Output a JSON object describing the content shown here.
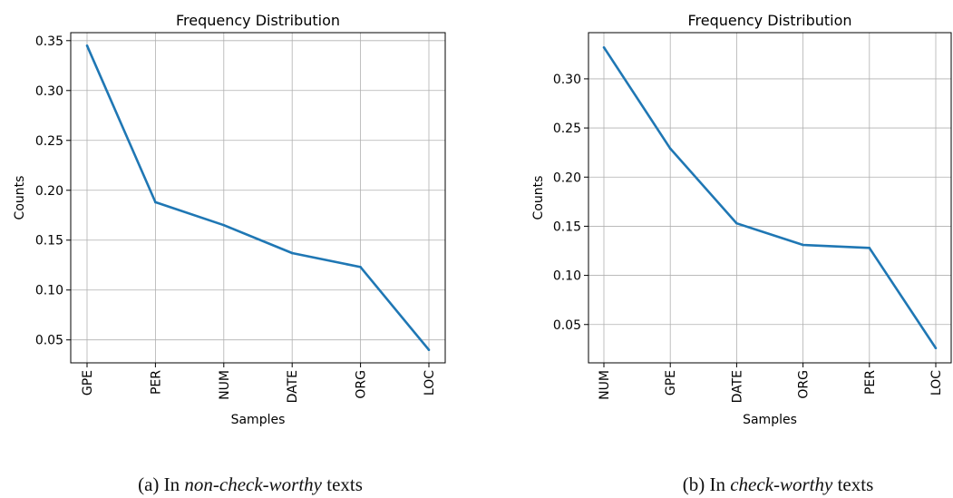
{
  "chart_data": [
    {
      "type": "line",
      "title": "Frequency Distribution",
      "xlabel": "Samples",
      "ylabel": "Counts",
      "categories": [
        "GPE",
        "PER",
        "NUM",
        "DATE",
        "ORG",
        "LOC"
      ],
      "values": [
        0.345,
        0.188,
        0.165,
        0.137,
        0.123,
        0.04
      ],
      "ylim": [
        0.027,
        0.358
      ],
      "yticks": [
        "0.05",
        "0.10",
        "0.15",
        "0.20",
        "0.25",
        "0.30",
        "0.35"
      ],
      "grid": true,
      "line_color": "#1f77b4",
      "caption": {
        "prefix": "(a) In ",
        "emphasis": "non-check-worthy",
        "suffix": " texts"
      }
    },
    {
      "type": "line",
      "title": "Frequency Distribution",
      "xlabel": "Samples",
      "ylabel": "Counts",
      "categories": [
        "NUM",
        "GPE",
        "DATE",
        "ORG",
        "PER",
        "LOC"
      ],
      "values": [
        0.332,
        0.229,
        0.153,
        0.131,
        0.128,
        0.026
      ],
      "ylim": [
        0.011,
        0.347
      ],
      "yticks": [
        "0.05",
        "0.10",
        "0.15",
        "0.20",
        "0.25",
        "0.30"
      ],
      "grid": true,
      "line_color": "#1f77b4",
      "caption": {
        "prefix": "(b) In ",
        "emphasis": "check-worthy",
        "suffix": " texts"
      }
    }
  ]
}
